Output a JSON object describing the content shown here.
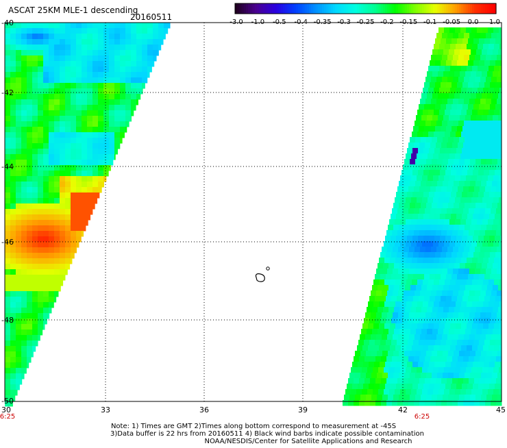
{
  "header": {
    "title": "ASCAT 25KM MLE-1 descending",
    "date": "20160511"
  },
  "colorbar": {
    "labels": [
      "-3.0",
      "-1.0",
      "-0.5",
      "-0.4",
      "-0.35",
      "-0.3",
      "-0.25",
      "-0.2",
      "-0.15",
      "-0.1",
      "-0.05",
      "0.0",
      "1.0"
    ],
    "colors": [
      "#200020",
      "#4a0090",
      "#2a00e0",
      "#0040ff",
      "#0090ff",
      "#00d8ff",
      "#00ffe0",
      "#00ff90",
      "#00ff00",
      "#80ff00",
      "#e8ff00",
      "#ffa000",
      "#ff3000",
      "#ff0000"
    ]
  },
  "axes": {
    "y_ticks": [
      "-40",
      "-42",
      "-44",
      "-46",
      "-48",
      "-50"
    ],
    "x_ticks": [
      "30",
      "33",
      "36",
      "39",
      "42",
      "45"
    ],
    "lat_range": [
      -50,
      -40
    ],
    "lon_range": [
      30,
      45
    ],
    "grid": "dotted"
  },
  "swath_times": {
    "left": "6:25",
    "right": "6:25"
  },
  "notes": {
    "line1": "Note: 1) Times are GMT 2)Times along bottom correspond to measurement at -45S",
    "line2": "3)Data buffer is 22 hrs from 20160511 4) Black wind barbs indicate possible contamination",
    "line3": "NOAA/NESDIS/Center for Satellite Applications and Research"
  },
  "map": {
    "features": [
      "island-outline"
    ]
  }
}
